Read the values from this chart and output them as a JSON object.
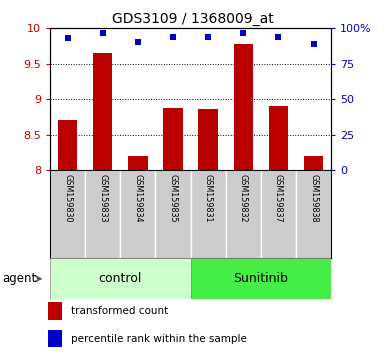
{
  "title": "GDS3109 / 1368009_at",
  "categories": [
    "GSM159830",
    "GSM159833",
    "GSM159834",
    "GSM159835",
    "GSM159831",
    "GSM159832",
    "GSM159837",
    "GSM159838"
  ],
  "bar_values": [
    8.7,
    9.65,
    8.2,
    8.88,
    8.86,
    9.78,
    8.9,
    8.2
  ],
  "dot_values": [
    93,
    97,
    90,
    94,
    94,
    97,
    94,
    89
  ],
  "ylim_left": [
    8.0,
    10.0
  ],
  "ylim_right": [
    0,
    100
  ],
  "yticks_left": [
    8.0,
    8.5,
    9.0,
    9.5,
    10.0
  ],
  "yticks_right": [
    0,
    25,
    50,
    75,
    100
  ],
  "ytick_labels_left": [
    "8",
    "8.5",
    "9",
    "9.5",
    "10"
  ],
  "ytick_labels_right": [
    "0",
    "25",
    "50",
    "75",
    "100%"
  ],
  "bar_color": "#bb0000",
  "dot_color": "#0000cc",
  "control_label": "control",
  "sunitinib_label": "Sunitinib",
  "agent_label": "agent",
  "legend_bar_label": "transformed count",
  "legend_dot_label": "percentile rank within the sample",
  "control_bg": "#ccffcc",
  "sunitinib_bg": "#44ee44",
  "xlabel_area_bg": "#cccccc",
  "n_control": 4,
  "n_sunitinib": 4
}
